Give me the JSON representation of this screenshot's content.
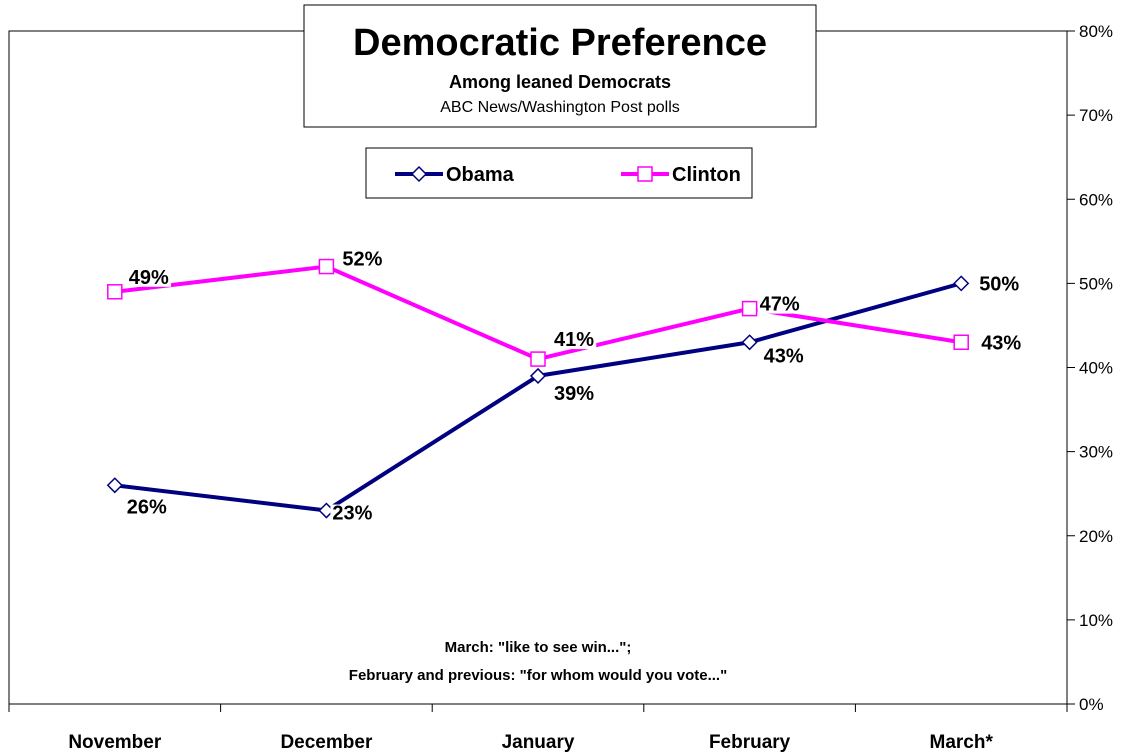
{
  "chart_data": {
    "type": "line",
    "title": "Democratic Preference",
    "subtitle": "Among leaned Democrats",
    "source": "ABC News/Washington Post polls",
    "categories": [
      "November",
      "December",
      "January",
      "February",
      "March*"
    ],
    "series": [
      {
        "name": "Obama",
        "color": "#000080",
        "marker": "diamond",
        "values": [
          26,
          23,
          39,
          43,
          50
        ],
        "labels": [
          "26%",
          "23%",
          "39%",
          "43%",
          "50%"
        ]
      },
      {
        "name": "Clinton",
        "color": "#FF00FF",
        "marker": "square",
        "values": [
          49,
          52,
          41,
          47,
          43
        ],
        "labels": [
          "49%",
          "52%",
          "41%",
          "47%",
          "43%"
        ]
      }
    ],
    "y_axis": {
      "position": "right",
      "min": 0,
      "max": 80,
      "step": 10,
      "tick_labels": [
        "0%",
        "10%",
        "20%",
        "30%",
        "40%",
        "50%",
        "60%",
        "70%",
        "80%"
      ]
    },
    "grid": false,
    "legend": "top-center",
    "notes": [
      "March: \"like to see win...\";",
      "February and previous: \"for whom would you vote...\""
    ]
  }
}
